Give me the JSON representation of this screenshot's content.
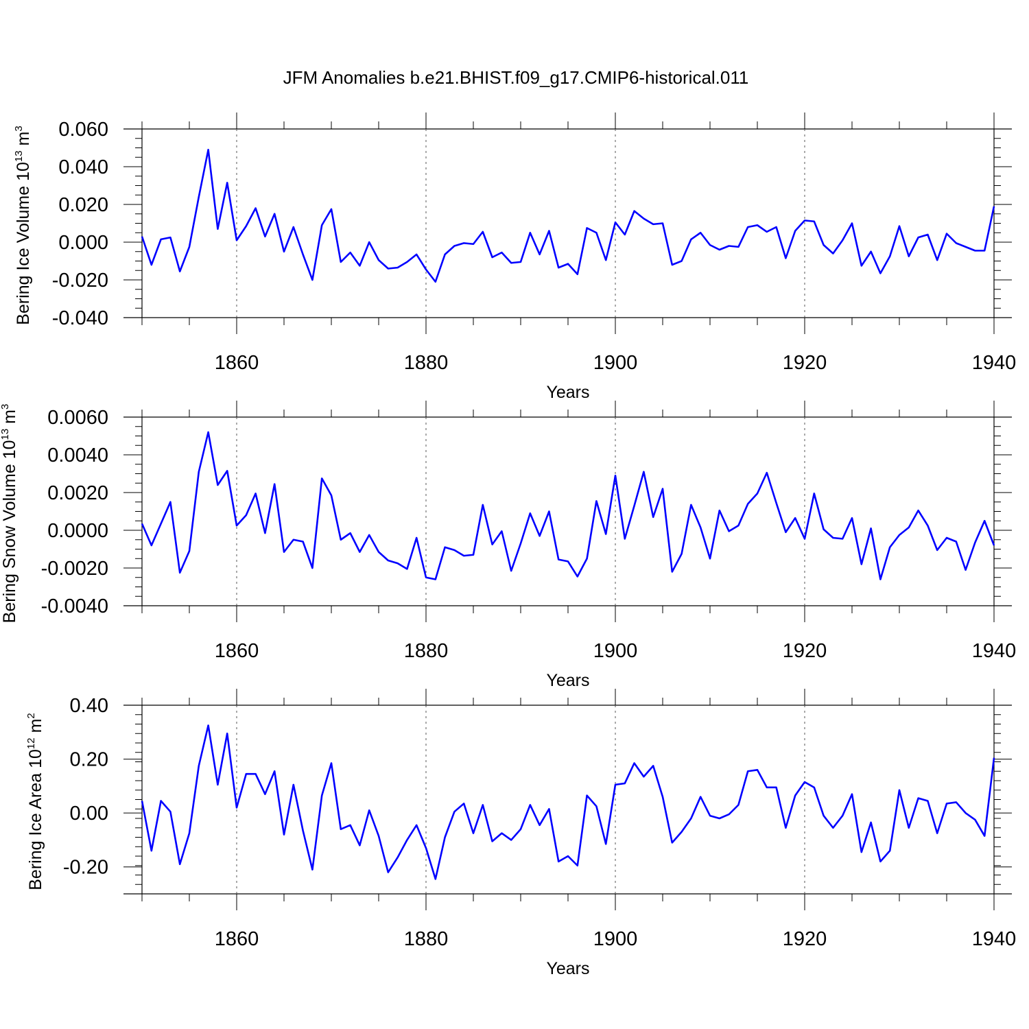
{
  "title": "JFM Anomalies b.e21.BHIST.f09_g17.CMIP6-historical.011",
  "line_color": "#0000ff",
  "chart_data": [
    {
      "type": "line",
      "ylabel_main": "Bering Ice Volume 10",
      "ylabel_exp": "13",
      "ylabel_unit": " m",
      "ylabel_unit_exp": "3",
      "xlabel": "Years",
      "xlim": [
        1850,
        1940
      ],
      "ylim": [
        -0.04,
        0.06
      ],
      "xticks": [
        1860,
        1880,
        1900,
        1920,
        1940
      ],
      "yticks": [
        -0.04,
        -0.02,
        0.0,
        0.02,
        0.04,
        0.06
      ],
      "ytick_labels": [
        "-0.040",
        "-0.020",
        "0.000",
        "0.020",
        "0.040",
        "0.060"
      ],
      "x_start": 1850,
      "values": [
        0.003,
        -0.012,
        0.0015,
        0.0025,
        -0.0155,
        -0.0025,
        0.024,
        0.049,
        0.007,
        0.0315,
        0.001,
        0.0085,
        0.018,
        0.003,
        0.015,
        -0.005,
        0.008,
        -0.0065,
        -0.02,
        0.009,
        0.0175,
        -0.0105,
        -0.0055,
        -0.0125,
        0.0,
        -0.0095,
        -0.014,
        -0.0135,
        -0.0105,
        -0.0065,
        -0.0145,
        -0.021,
        -0.0065,
        -0.002,
        -0.0005,
        -0.001,
        0.0055,
        -0.008,
        -0.0055,
        -0.011,
        -0.0105,
        0.005,
        -0.0065,
        0.006,
        -0.0135,
        -0.0115,
        -0.017,
        0.0075,
        0.005,
        -0.0095,
        0.0105,
        0.004,
        0.0165,
        0.0125,
        0.0095,
        0.01,
        -0.012,
        -0.01,
        0.0015,
        0.005,
        -0.0015,
        -0.004,
        -0.002,
        -0.0025,
        0.008,
        0.009,
        0.0055,
        0.008,
        -0.0085,
        0.006,
        0.0115,
        0.011,
        -0.0015,
        -0.006,
        0.001,
        0.01,
        -0.0125,
        -0.005,
        -0.0165,
        -0.0075,
        0.0085,
        -0.0075,
        0.0025,
        0.004,
        -0.0095,
        0.0045,
        -0.0005,
        -0.0025,
        -0.0045,
        -0.0045,
        0.019
      ]
    },
    {
      "type": "line",
      "ylabel_main": "Bering Snow Volume 10",
      "ylabel_exp": "13",
      "ylabel_unit": " m",
      "ylabel_unit_exp": "3",
      "xlabel": "Years",
      "xlim": [
        1850,
        1940
      ],
      "ylim": [
        -0.004,
        0.006
      ],
      "xticks": [
        1860,
        1880,
        1900,
        1920,
        1940
      ],
      "yticks": [
        -0.004,
        -0.002,
        0.0,
        0.002,
        0.004,
        0.006
      ],
      "ytick_labels": [
        "-0.0040",
        "-0.0020",
        "0.0000",
        "0.0020",
        "0.0040",
        "0.0060"
      ],
      "x_start": 1850,
      "values": [
        0.00035,
        -0.0008,
        0.00035,
        0.0015,
        -0.00225,
        -0.0011,
        0.0031,
        0.0052,
        0.0024,
        0.00315,
        0.00025,
        0.0008,
        0.00195,
        -0.00015,
        0.00245,
        -0.00115,
        -0.0005,
        -0.0006,
        -0.002,
        0.00275,
        0.00185,
        -0.0005,
        -0.00015,
        -0.00115,
        -0.00025,
        -0.00115,
        -0.0016,
        -0.00175,
        -0.00205,
        -0.0004,
        -0.0025,
        -0.0026,
        -0.0009,
        -0.00105,
        -0.00135,
        -0.0013,
        0.00135,
        -0.00075,
        -5e-05,
        -0.00215,
        -0.0007,
        0.0009,
        -0.0003,
        0.001,
        -0.00155,
        -0.00165,
        -0.00245,
        -0.0015,
        0.00155,
        -0.0002,
        0.0029,
        -0.00045,
        0.0013,
        0.0031,
        0.0007,
        0.0022,
        -0.0022,
        -0.00125,
        0.00135,
        0.00015,
        -0.0015,
        0.00105,
        -5e-05,
        0.00025,
        0.0014,
        0.00195,
        0.00305,
        0.00145,
        -0.0001,
        0.00065,
        -0.00045,
        0.00195,
        5e-05,
        -0.0004,
        -0.00045,
        0.00065,
        -0.0018,
        0.0001,
        -0.0026,
        -0.0009,
        -0.00025,
        0.00015,
        0.00105,
        0.00025,
        -0.00105,
        -0.0004,
        -0.0006,
        -0.0021,
        -0.00065,
        0.0005,
        -0.0008
      ]
    },
    {
      "type": "line",
      "ylabel_main": "Bering Ice Area 10",
      "ylabel_exp": "12",
      "ylabel_unit": " m",
      "ylabel_unit_exp": "2",
      "xlabel": "Years",
      "xlim": [
        1850,
        1940
      ],
      "ylim": [
        -0.3,
        0.4
      ],
      "xticks": [
        1860,
        1880,
        1900,
        1920,
        1940
      ],
      "yticks": [
        -0.2,
        0.0,
        0.2,
        0.4
      ],
      "ytick_labels": [
        "-0.20",
        "0.00",
        "0.20",
        "0.40"
      ],
      "x_start": 1850,
      "values": [
        0.045,
        -0.14,
        0.045,
        0.005,
        -0.19,
        -0.075,
        0.175,
        0.325,
        0.105,
        0.295,
        0.02,
        0.145,
        0.145,
        0.07,
        0.155,
        -0.08,
        0.105,
        -0.065,
        -0.21,
        0.065,
        0.185,
        -0.06,
        -0.045,
        -0.12,
        0.01,
        -0.085,
        -0.22,
        -0.165,
        -0.1,
        -0.045,
        -0.13,
        -0.245,
        -0.09,
        0.005,
        0.035,
        -0.075,
        0.03,
        -0.105,
        -0.075,
        -0.1,
        -0.06,
        0.03,
        -0.045,
        0.015,
        -0.18,
        -0.16,
        -0.195,
        0.065,
        0.025,
        -0.115,
        0.105,
        0.11,
        0.185,
        0.135,
        0.175,
        0.06,
        -0.11,
        -0.07,
        -0.02,
        0.06,
        -0.01,
        -0.02,
        -0.005,
        0.03,
        0.155,
        0.16,
        0.095,
        0.095,
        -0.055,
        0.065,
        0.115,
        0.095,
        -0.01,
        -0.055,
        -0.01,
        0.07,
        -0.145,
        -0.035,
        -0.18,
        -0.14,
        0.085,
        -0.055,
        0.055,
        0.045,
        -0.075,
        0.035,
        0.04,
        0.0,
        -0.025,
        -0.085,
        0.205
      ]
    }
  ]
}
